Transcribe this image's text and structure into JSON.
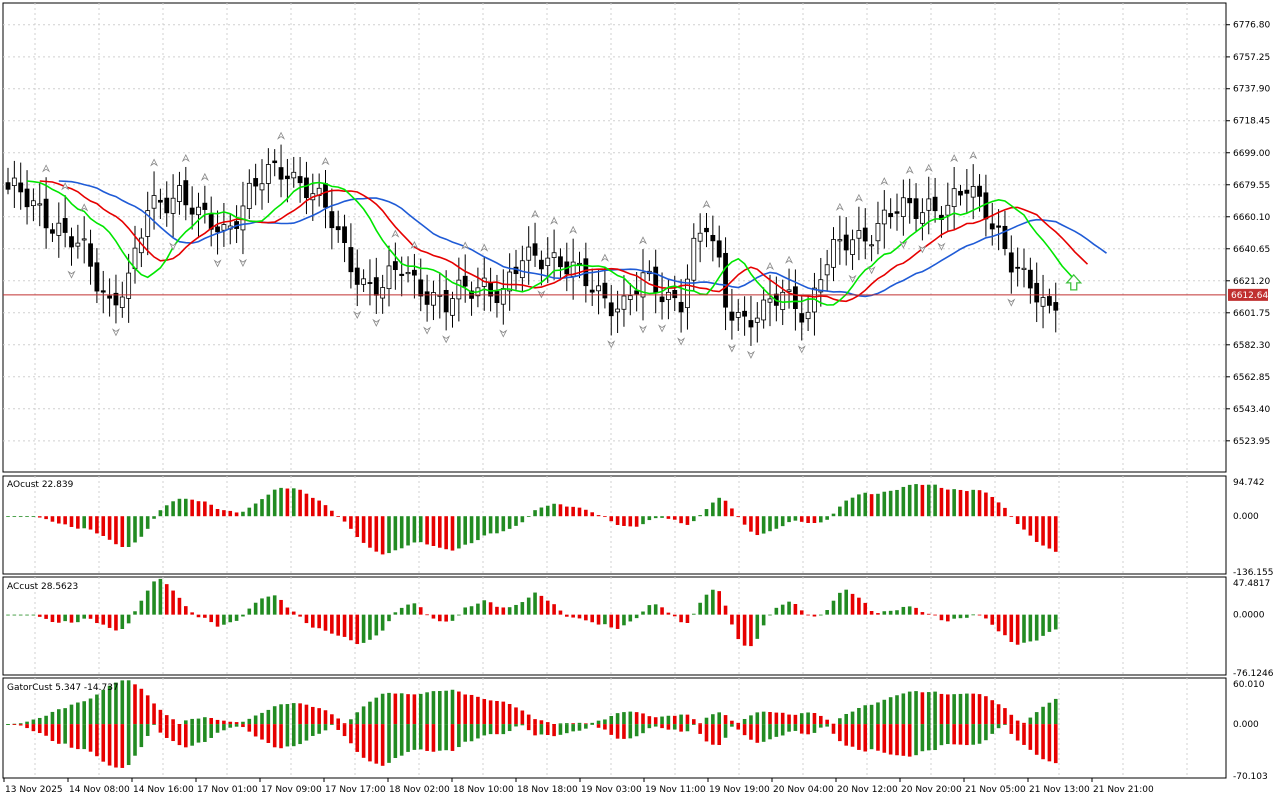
{
  "chart_data": {
    "type": "candlestick",
    "main": {
      "price_axis_labels": [
        "6776.80",
        "6757.25",
        "6737.90",
        "6718.45",
        "6699.00",
        "6679.55",
        "6660.10",
        "6640.65",
        "6621.20",
        "6601.75",
        "6582.30",
        "6562.85",
        "6543.40",
        "6523.95"
      ],
      "ylim": [
        6505,
        6790
      ],
      "current_price": "6612.64",
      "colors": {
        "up_body": "#ffffff",
        "down_body": "#000000",
        "jaw": "#1f5bd6",
        "teeth": "#e60000",
        "lips": "#00e600",
        "current_line": "#c03030",
        "grid": "#d0d0d0",
        "signal_arrow": "#40c040"
      }
    },
    "ao": {
      "label": "AOcust 22.839",
      "axis_labels": [
        "94.742",
        "0.000",
        "-136.155"
      ],
      "ylim": [
        -136.155,
        94.742
      ]
    },
    "ac": {
      "label": "ACcust 28.5623",
      "axis_labels": [
        "47.4817",
        "0.0000",
        "-76.1246"
      ],
      "ylim": [
        -76.1246,
        47.4817
      ]
    },
    "gator": {
      "label": "GatorCust 5.347 -14.737",
      "axis_labels": [
        "60.010",
        "0.000",
        "-70.103"
      ],
      "ylim": [
        -70.103,
        60.01
      ]
    },
    "time_labels": [
      "13 Nov 2025",
      "14 Nov 08:00",
      "14 Nov 16:00",
      "17 Nov 01:00",
      "17 Nov 09:00",
      "17 Nov 17:00",
      "18 Nov 02:00",
      "18 Nov 10:00",
      "18 Nov 18:00",
      "19 Nov 03:00",
      "19 Nov 11:00",
      "19 Nov 19:00",
      "20 Nov 04:00",
      "20 Nov 12:00",
      "20 Nov 20:00",
      "21 Nov 05:00",
      "21 Nov 13:00",
      "21 Nov 21:00"
    ],
    "close_anchors": [
      [
        0,
        6672
      ],
      [
        2,
        6674
      ],
      [
        5,
        6668
      ],
      [
        9,
        6645
      ],
      [
        12,
        6638
      ],
      [
        16,
        6610
      ],
      [
        19,
        6618
      ],
      [
        22,
        6663
      ],
      [
        24,
        6672
      ],
      [
        27,
        6676
      ],
      [
        30,
        6657
      ],
      [
        34,
        6653
      ],
      [
        38,
        6674
      ],
      [
        41,
        6684
      ],
      [
        44,
        6690
      ],
      [
        47,
        6680
      ],
      [
        50,
        6662
      ],
      [
        53,
        6640
      ],
      [
        56,
        6622
      ],
      [
        59,
        6615
      ],
      [
        62,
        6628
      ],
      [
        65,
        6620
      ],
      [
        69,
        6604
      ],
      [
        72,
        6615
      ],
      [
        75,
        6622
      ],
      [
        78,
        6612
      ],
      [
        81,
        6632
      ],
      [
        85,
        6640
      ],
      [
        88,
        6630
      ],
      [
        91,
        6618
      ],
      [
        94,
        6612
      ],
      [
        97,
        6608
      ],
      [
        100,
        6619
      ],
      [
        103,
        6614
      ],
      [
        106,
        6612
      ],
      [
        108,
        6640
      ],
      [
        110,
        6652
      ],
      [
        112,
        6628
      ],
      [
        113,
        6609
      ],
      [
        116,
        6600
      ],
      [
        119,
        6600
      ],
      [
        122,
        6612
      ],
      [
        124,
        6610
      ],
      [
        126,
        6603
      ],
      [
        128,
        6625
      ],
      [
        130,
        6636
      ],
      [
        133,
        6648
      ],
      [
        136,
        6653
      ],
      [
        139,
        6660
      ],
      [
        142,
        6664
      ],
      [
        145,
        6670
      ],
      [
        148,
        6664
      ],
      [
        151,
        6675
      ],
      [
        154,
        6668
      ],
      [
        156,
        6652
      ],
      [
        158,
        6631
      ],
      [
        160,
        6618
      ],
      [
        162,
        6612
      ],
      [
        164,
        6606
      ],
      [
        165,
        6613
      ]
    ]
  }
}
